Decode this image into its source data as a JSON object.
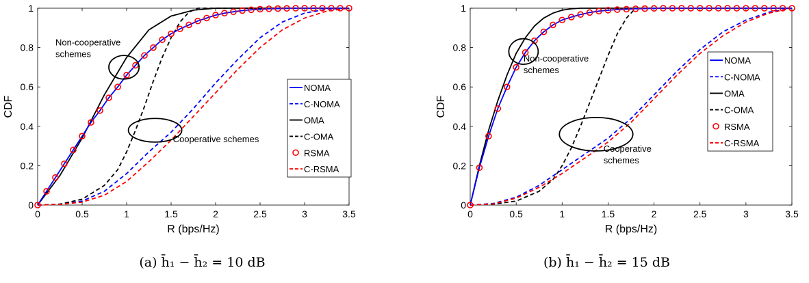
{
  "chart_data": [
    {
      "type": "line",
      "caption_label": "(a)",
      "caption_expr": "h̄₁ − h̄₂ = 10 dB",
      "xlabel": "R (bps/Hz)",
      "ylabel": "CDF",
      "xlim": [
        0,
        3.5
      ],
      "ylim": [
        0,
        1
      ],
      "xticks": [
        "0",
        "0.5",
        "1",
        "1.5",
        "2",
        "2.5",
        "3",
        "3.5"
      ],
      "yticks": [
        "0",
        "0.2",
        "0.4",
        "0.6",
        "0.8",
        "1"
      ],
      "xtick_values": [
        0,
        0.5,
        1,
        1.5,
        2,
        2.5,
        3,
        3.5
      ],
      "ytick_values": [
        0,
        0.2,
        0.4,
        0.6,
        0.8,
        1
      ],
      "legend": {
        "position": "right",
        "entries": [
          "NOMA",
          "C-NOMA",
          "OMA",
          "C-OMA",
          "RSMA",
          "C-RSMA"
        ]
      },
      "series": [
        {
          "name": "NOMA",
          "color": "#0000ff",
          "style": "solid",
          "x": [
            0,
            0.1,
            0.2,
            0.3,
            0.4,
            0.5,
            0.6,
            0.7,
            0.8,
            0.9,
            1.0,
            1.1,
            1.2,
            1.3,
            1.4,
            1.5,
            1.6,
            1.7,
            1.8,
            1.9,
            2.0,
            2.1,
            2.2,
            2.3,
            2.4,
            2.5,
            2.6,
            2.7,
            2.8,
            2.9,
            3.0,
            3.1,
            3.2,
            3.3,
            3.4,
            3.5
          ],
          "y": [
            0,
            0.07,
            0.14,
            0.21,
            0.28,
            0.35,
            0.42,
            0.48,
            0.545,
            0.6,
            0.66,
            0.71,
            0.76,
            0.8,
            0.84,
            0.87,
            0.895,
            0.915,
            0.935,
            0.95,
            0.965,
            0.975,
            0.982,
            0.988,
            0.992,
            0.995,
            0.997,
            0.998,
            0.999,
            1,
            1,
            1,
            1,
            1,
            1,
            1
          ]
        },
        {
          "name": "C-NOMA",
          "color": "#0000ff",
          "style": "dashed",
          "x": [
            0,
            0.25,
            0.5,
            0.75,
            1.0,
            1.25,
            1.5,
            1.75,
            2.0,
            2.25,
            2.5,
            2.75,
            3.0,
            3.25,
            3.5
          ],
          "y": [
            0,
            0.004,
            0.02,
            0.07,
            0.16,
            0.27,
            0.37,
            0.49,
            0.62,
            0.74,
            0.85,
            0.93,
            0.975,
            0.995,
            1
          ]
        },
        {
          "name": "OMA",
          "color": "#000000",
          "style": "solid",
          "x": [
            0,
            0.25,
            0.5,
            0.75,
            1.0,
            1.25,
            1.5,
            1.75,
            2.0,
            2.25,
            2.5,
            3.0,
            3.5
          ],
          "y": [
            0,
            0.15,
            0.34,
            0.56,
            0.75,
            0.89,
            0.96,
            0.99,
            1,
            1,
            1,
            1,
            1
          ]
        },
        {
          "name": "C-OMA",
          "color": "#000000",
          "style": "dashed",
          "x": [
            0,
            0.25,
            0.5,
            0.75,
            0.9,
            1.0,
            1.1,
            1.2,
            1.3,
            1.4,
            1.5,
            1.6,
            1.7,
            1.8,
            2.0,
            2.5,
            3.0,
            3.5
          ],
          "y": [
            0,
            0.005,
            0.03,
            0.1,
            0.18,
            0.27,
            0.38,
            0.5,
            0.63,
            0.75,
            0.85,
            0.93,
            0.98,
            1,
            1,
            1,
            1,
            1
          ]
        },
        {
          "name": "RSMA",
          "color": "#ff0000",
          "style": "markers",
          "x": [
            0,
            0.1,
            0.2,
            0.3,
            0.4,
            0.5,
            0.6,
            0.7,
            0.8,
            0.9,
            1.0,
            1.1,
            1.2,
            1.3,
            1.4,
            1.5,
            1.6,
            1.7,
            1.8,
            1.9,
            2.0,
            2.1,
            2.2,
            2.3,
            2.4,
            2.5,
            2.6,
            2.7,
            2.8,
            2.9,
            3.0,
            3.1,
            3.2,
            3.3,
            3.4,
            3.5
          ],
          "y": [
            0,
            0.07,
            0.14,
            0.21,
            0.28,
            0.35,
            0.42,
            0.48,
            0.545,
            0.6,
            0.66,
            0.71,
            0.76,
            0.8,
            0.84,
            0.87,
            0.895,
            0.915,
            0.935,
            0.95,
            0.965,
            0.975,
            0.982,
            0.988,
            0.992,
            0.995,
            0.997,
            0.998,
            0.999,
            1,
            1,
            1,
            1,
            1,
            1,
            1
          ]
        },
        {
          "name": "C-RSMA",
          "color": "#ff0000",
          "style": "dashed",
          "x": [
            0,
            0.25,
            0.5,
            0.75,
            1.0,
            1.25,
            1.5,
            1.75,
            2.0,
            2.25,
            2.5,
            2.75,
            3.0,
            3.25,
            3.5
          ],
          "y": [
            0,
            0.003,
            0.015,
            0.05,
            0.12,
            0.22,
            0.33,
            0.45,
            0.57,
            0.69,
            0.8,
            0.89,
            0.95,
            0.985,
            1
          ]
        }
      ],
      "annotations": [
        {
          "text_lines": [
            "Non-cooperative",
            "schemes"
          ],
          "x": 0.2,
          "y": 0.81,
          "ellipse": {
            "cx": 0.97,
            "cy": 0.7,
            "rx": 0.17,
            "ry": 0.06
          }
        },
        {
          "text_lines": [
            "Cooperative schemes"
          ],
          "x": 1.52,
          "y": 0.32,
          "ellipse": {
            "cx": 1.32,
            "cy": 0.38,
            "rx": 0.3,
            "ry": 0.06
          }
        }
      ]
    },
    {
      "type": "line",
      "caption_label": "(b)",
      "caption_expr": "h̄₁ − h̄₂ = 15 dB",
      "xlabel": "R (bps/Hz)",
      "ylabel": "CDF",
      "xlim": [
        0,
        3.5
      ],
      "ylim": [
        0,
        1
      ],
      "xticks": [
        "0",
        "0.5",
        "1",
        "1.5",
        "2",
        "2.5",
        "3",
        "3.5"
      ],
      "yticks": [
        "0",
        "0.2",
        "0.4",
        "0.6",
        "0.8",
        "1"
      ],
      "xtick_values": [
        0,
        0.5,
        1,
        1.5,
        2,
        2.5,
        3,
        3.5
      ],
      "ytick_values": [
        0,
        0.2,
        0.4,
        0.6,
        0.8,
        1
      ],
      "legend": {
        "position": "right",
        "entries": [
          "NOMA",
          "C-NOMA",
          "OMA",
          "C-OMA",
          "RSMA",
          "C-RSMA"
        ]
      },
      "series": [
        {
          "name": "NOMA",
          "color": "#0000ff",
          "style": "solid",
          "x": [
            0,
            0.1,
            0.2,
            0.3,
            0.4,
            0.5,
            0.6,
            0.7,
            0.8,
            0.9,
            1.0,
            1.1,
            1.2,
            1.3,
            1.4,
            1.5,
            1.6,
            1.7,
            1.8,
            1.9,
            2.0,
            2.1,
            2.2,
            2.3,
            2.4,
            2.5,
            2.6,
            2.7,
            2.8,
            2.9,
            3.0,
            3.1,
            3.2,
            3.3,
            3.4,
            3.5
          ],
          "y": [
            0,
            0.19,
            0.35,
            0.49,
            0.6,
            0.7,
            0.775,
            0.835,
            0.88,
            0.915,
            0.94,
            0.955,
            0.968,
            0.978,
            0.985,
            0.99,
            0.993,
            0.995,
            0.997,
            0.998,
            0.999,
            1,
            1,
            1,
            1,
            1,
            1,
            1,
            1,
            1,
            1,
            1,
            1,
            1,
            1,
            1
          ]
        },
        {
          "name": "C-NOMA",
          "color": "#0000ff",
          "style": "dashed",
          "x": [
            0,
            0.25,
            0.5,
            0.75,
            1.0,
            1.25,
            1.5,
            1.75,
            2.0,
            2.25,
            2.5,
            2.75,
            3.0,
            3.25,
            3.5
          ],
          "y": [
            0,
            0.008,
            0.04,
            0.1,
            0.18,
            0.26,
            0.34,
            0.44,
            0.56,
            0.68,
            0.79,
            0.88,
            0.94,
            0.98,
            1
          ]
        },
        {
          "name": "OMA",
          "color": "#000000",
          "style": "solid",
          "x": [
            0,
            0.1,
            0.2,
            0.3,
            0.4,
            0.5,
            0.6,
            0.7,
            0.8,
            0.9,
            1.0,
            1.1,
            1.2,
            1.5,
            2.0,
            2.5,
            3.0,
            3.5
          ],
          "y": [
            0,
            0.2,
            0.38,
            0.53,
            0.66,
            0.77,
            0.85,
            0.91,
            0.95,
            0.975,
            0.99,
            0.997,
            1,
            1,
            1,
            1,
            1,
            1
          ]
        },
        {
          "name": "C-OMA",
          "color": "#000000",
          "style": "dashed",
          "x": [
            0,
            0.25,
            0.5,
            0.75,
            0.9,
            1.0,
            1.1,
            1.2,
            1.3,
            1.4,
            1.5,
            1.6,
            1.7,
            1.8,
            2.0,
            2.5,
            3.0,
            3.5
          ],
          "y": [
            0,
            0.005,
            0.02,
            0.07,
            0.13,
            0.2,
            0.29,
            0.4,
            0.52,
            0.64,
            0.76,
            0.87,
            0.95,
            1,
            1,
            1,
            1,
            1
          ]
        },
        {
          "name": "RSMA",
          "color": "#ff0000",
          "style": "markers",
          "x": [
            0,
            0.1,
            0.2,
            0.3,
            0.4,
            0.5,
            0.6,
            0.7,
            0.8,
            0.9,
            1.0,
            1.1,
            1.2,
            1.3,
            1.4,
            1.5,
            1.6,
            1.7,
            1.8,
            1.9,
            2.0,
            2.1,
            2.2,
            2.3,
            2.4,
            2.5,
            2.6,
            2.7,
            2.8,
            2.9,
            3.0,
            3.1,
            3.2,
            3.3,
            3.4,
            3.5
          ],
          "y": [
            0,
            0.19,
            0.35,
            0.49,
            0.6,
            0.7,
            0.775,
            0.835,
            0.88,
            0.915,
            0.94,
            0.955,
            0.968,
            0.978,
            0.985,
            0.99,
            0.993,
            0.995,
            0.997,
            0.998,
            0.999,
            1,
            1,
            1,
            1,
            1,
            1,
            1,
            1,
            1,
            1,
            1,
            1,
            1,
            1,
            1
          ]
        },
        {
          "name": "C-RSMA",
          "color": "#ff0000",
          "style": "dashed",
          "x": [
            0,
            0.25,
            0.5,
            0.75,
            1.0,
            1.25,
            1.5,
            1.75,
            2.0,
            2.25,
            2.5,
            2.75,
            3.0,
            3.25,
            3.5
          ],
          "y": [
            0,
            0.006,
            0.035,
            0.09,
            0.16,
            0.24,
            0.32,
            0.42,
            0.54,
            0.66,
            0.77,
            0.86,
            0.93,
            0.975,
            1
          ]
        }
      ],
      "annotations": [
        {
          "text_lines": [
            "Non-cooperative",
            "schemes"
          ],
          "x": 0.58,
          "y": 0.73,
          "ellipse": {
            "cx": 0.58,
            "cy": 0.78,
            "rx": 0.16,
            "ry": 0.065
          }
        },
        {
          "text_lines": [
            "Cooperative",
            "schemes"
          ],
          "x": 1.45,
          "y": 0.27,
          "ellipse": {
            "cx": 1.37,
            "cy": 0.36,
            "rx": 0.4,
            "ry": 0.085
          }
        }
      ]
    }
  ]
}
